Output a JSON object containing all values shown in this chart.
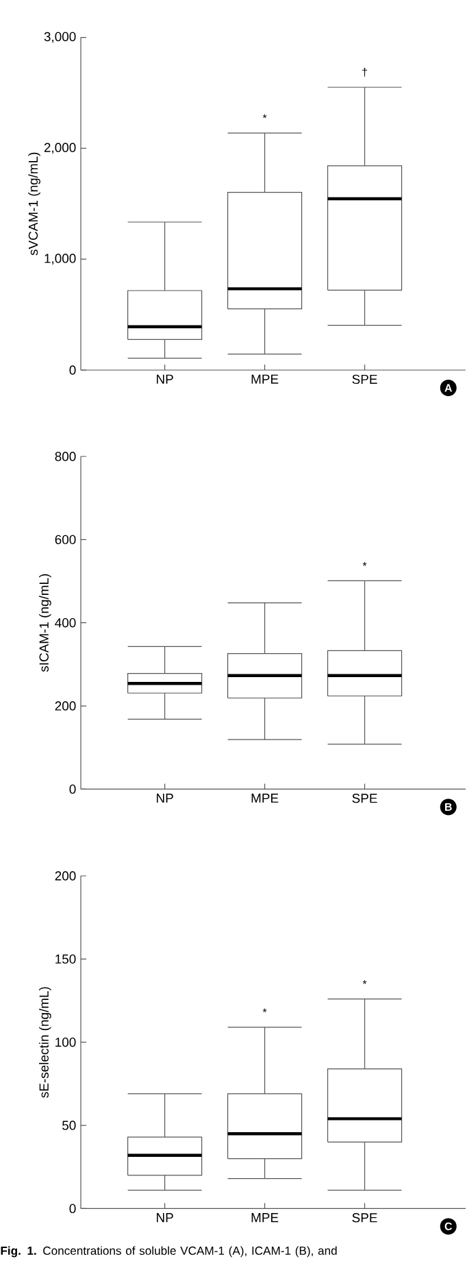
{
  "chart_data": [
    {
      "type": "box",
      "ylabel": "sVCAM-1 (ng/mL)",
      "categories": [
        "NP",
        "MPE",
        "SPE"
      ],
      "color": "#555555",
      "boxes": [
        {
          "low": 107,
          "q1": 276,
          "median": 391,
          "q3": 717,
          "high": 1335
        },
        {
          "low": 144,
          "q1": 552,
          "median": 733,
          "q3": 1603,
          "high": 2138
        },
        {
          "low": 404,
          "q1": 721,
          "median": 1545,
          "q3": 1842,
          "high": 2551
        }
      ],
      "ylim": [
        0,
        3000
      ],
      "yticks": [
        0,
        {
          "value": 1000,
          "label": "1,000"
        },
        {
          "value": 2000,
          "label": "2,000"
        },
        {
          "value": 3000,
          "label": "3,000"
        }
      ],
      "annotations": [
        "A",
        "*",
        "†"
      ]
    },
    {
      "type": "box",
      "ylabel": "sICAM-1 (ng/mL)",
      "categories": [
        "NP",
        "MPE",
        "SPE"
      ],
      "color": "#555555",
      "boxes": [
        {
          "low": 168,
          "q1": 231,
          "median": 254,
          "q3": 278,
          "high": 343
        },
        {
          "low": 119,
          "q1": 219,
          "median": 273,
          "q3": 326,
          "high": 448
        },
        {
          "low": 108,
          "q1": 224,
          "median": 273,
          "q3": 333,
          "high": 501
        }
      ],
      "ylim": [
        0,
        800
      ],
      "yticks": [
        0,
        200,
        400,
        600,
        800
      ],
      "annotations": [
        "B",
        "*"
      ]
    },
    {
      "type": "box",
      "ylabel": "sE-selectin (ng/mL)",
      "categories": [
        "NP",
        "MPE",
        "SPE"
      ],
      "color": "#555555",
      "boxes": [
        {
          "low": 11,
          "q1": 20,
          "median": 32,
          "q3": 43,
          "high": 69
        },
        {
          "low": 18,
          "q1": 30,
          "median": 45,
          "q3": 69,
          "high": 109
        },
        {
          "low": 11,
          "q1": 40,
          "median": 54,
          "q3": 84,
          "high": 126
        }
      ],
      "ylim": [
        0,
        200
      ],
      "yticks": [
        0,
        50,
        100,
        150,
        200
      ],
      "annotations": [
        "C",
        "*",
        "*",
        "**Fig. 1.** Concentrations of soluble VCAM-1 (A), ICAM-1 (B), and"
      ]
    }
  ]
}
